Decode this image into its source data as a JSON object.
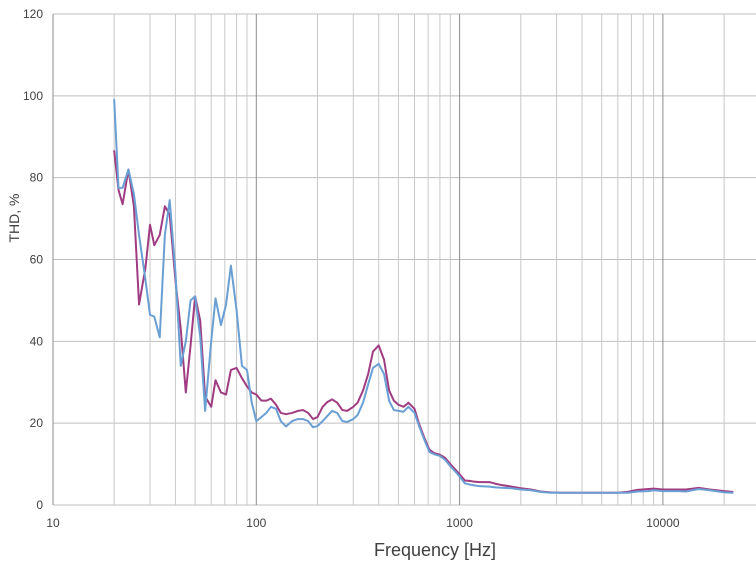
{
  "chart_data": {
    "type": "line",
    "title": "",
    "xlabel": "Frequency [Hz]",
    "ylabel": "THD, %",
    "xscale": "log",
    "xlim": [
      10,
      25000
    ],
    "ylim": [
      0,
      120
    ],
    "x_ticks": [
      "10",
      "100",
      "1000",
      "10000"
    ],
    "y_ticks": [
      "0",
      "20",
      "40",
      "60",
      "80",
      "100",
      "120"
    ],
    "grid": true,
    "legend": "none",
    "series": [
      {
        "color": "#a03c82",
        "points": [
          [
            20,
            86.5
          ],
          [
            21,
            77
          ],
          [
            22,
            73.5
          ],
          [
            23.5,
            82
          ],
          [
            25,
            73
          ],
          [
            26.5,
            49
          ],
          [
            28.5,
            58
          ],
          [
            30,
            68.5
          ],
          [
            31.5,
            63.5
          ],
          [
            33.5,
            66
          ],
          [
            35.5,
            73
          ],
          [
            37.5,
            71
          ],
          [
            40,
            55
          ],
          [
            42.5,
            43
          ],
          [
            45,
            27.5
          ],
          [
            47.5,
            39
          ],
          [
            50,
            51
          ],
          [
            53,
            45
          ],
          [
            56,
            26.5
          ],
          [
            60,
            24
          ],
          [
            63,
            30.5
          ],
          [
            67,
            27.5
          ],
          [
            71,
            27
          ],
          [
            75,
            33
          ],
          [
            80,
            33.5
          ],
          [
            85,
            31
          ],
          [
            90,
            29
          ],
          [
            95,
            27.5
          ],
          [
            100,
            27
          ],
          [
            106,
            25.5
          ],
          [
            112,
            25.5
          ],
          [
            118,
            26
          ],
          [
            125,
            24.5
          ],
          [
            132,
            22.5
          ],
          [
            140,
            22.2
          ],
          [
            150,
            22.5
          ],
          [
            160,
            23
          ],
          [
            170,
            23.2
          ],
          [
            180,
            22.5
          ],
          [
            190,
            21
          ],
          [
            200,
            21.5
          ],
          [
            212,
            24
          ],
          [
            224,
            25.2
          ],
          [
            236,
            25.8
          ],
          [
            250,
            25
          ],
          [
            265,
            23.2
          ],
          [
            280,
            23
          ],
          [
            300,
            24
          ],
          [
            315,
            25
          ],
          [
            335,
            28
          ],
          [
            355,
            32
          ],
          [
            375,
            37.5
          ],
          [
            400,
            39
          ],
          [
            425,
            35.5
          ],
          [
            450,
            28
          ],
          [
            475,
            25.5
          ],
          [
            500,
            24.5
          ],
          [
            530,
            24
          ],
          [
            560,
            25
          ],
          [
            600,
            23.5
          ],
          [
            630,
            20
          ],
          [
            670,
            16.5
          ],
          [
            710,
            13.5
          ],
          [
            750,
            12.7
          ],
          [
            800,
            12.3
          ],
          [
            850,
            11.5
          ],
          [
            900,
            10
          ],
          [
            1000,
            7.5
          ],
          [
            1060,
            6
          ],
          [
            1120,
            5.9
          ],
          [
            1180,
            5.7
          ],
          [
            1250,
            5.6
          ],
          [
            1400,
            5.6
          ],
          [
            1500,
            5.2
          ],
          [
            1600,
            4.9
          ],
          [
            1800,
            4.5
          ],
          [
            2000,
            4.1
          ],
          [
            2240,
            3.8
          ],
          [
            2500,
            3.3
          ],
          [
            2800,
            3.1
          ],
          [
            3150,
            3.0
          ],
          [
            4000,
            3.0
          ],
          [
            5000,
            3.0
          ],
          [
            6000,
            3.0
          ],
          [
            6700,
            3.2
          ],
          [
            7500,
            3.7
          ],
          [
            8500,
            3.9
          ],
          [
            9000,
            4.0
          ],
          [
            10000,
            3.8
          ],
          [
            12000,
            3.8
          ],
          [
            13000,
            3.8
          ],
          [
            15000,
            4.2
          ],
          [
            17000,
            3.8
          ],
          [
            20000,
            3.4
          ],
          [
            22000,
            3.2
          ]
        ]
      },
      {
        "color": "#6a9fd4",
        "points": [
          [
            20,
            99
          ],
          [
            21,
            77.5
          ],
          [
            22,
            77.5
          ],
          [
            23.5,
            82
          ],
          [
            25,
            76
          ],
          [
            26.5,
            66
          ],
          [
            28.5,
            55
          ],
          [
            30,
            46.5
          ],
          [
            31.5,
            46
          ],
          [
            33.5,
            41
          ],
          [
            35.5,
            66
          ],
          [
            37.5,
            74.5
          ],
          [
            40,
            57
          ],
          [
            42.5,
            34
          ],
          [
            45,
            40
          ],
          [
            47.5,
            50
          ],
          [
            50,
            51
          ],
          [
            53,
            41
          ],
          [
            56,
            23
          ],
          [
            60,
            40
          ],
          [
            63,
            50.5
          ],
          [
            67,
            44
          ],
          [
            71,
            49
          ],
          [
            75,
            58.5
          ],
          [
            80,
            47.5
          ],
          [
            85,
            34
          ],
          [
            90,
            33
          ],
          [
            95,
            25
          ],
          [
            100,
            20.5
          ],
          [
            106,
            21.5
          ],
          [
            112,
            22.5
          ],
          [
            118,
            24
          ],
          [
            125,
            23.5
          ],
          [
            132,
            20.5
          ],
          [
            140,
            19.2
          ],
          [
            150,
            20.5
          ],
          [
            160,
            21
          ],
          [
            170,
            21
          ],
          [
            180,
            20.5
          ],
          [
            190,
            19
          ],
          [
            200,
            19.3
          ],
          [
            212,
            20.5
          ],
          [
            224,
            21.8
          ],
          [
            236,
            23
          ],
          [
            250,
            22.5
          ],
          [
            265,
            20.5
          ],
          [
            280,
            20.3
          ],
          [
            300,
            21
          ],
          [
            315,
            22
          ],
          [
            335,
            25
          ],
          [
            355,
            29.5
          ],
          [
            375,
            33.5
          ],
          [
            400,
            34.5
          ],
          [
            425,
            32
          ],
          [
            450,
            25.5
          ],
          [
            475,
            23.2
          ],
          [
            500,
            23
          ],
          [
            530,
            22.8
          ],
          [
            560,
            24
          ],
          [
            600,
            22.5
          ],
          [
            630,
            19.5
          ],
          [
            670,
            16
          ],
          [
            710,
            13
          ],
          [
            750,
            12.4
          ],
          [
            800,
            12
          ],
          [
            850,
            11
          ],
          [
            900,
            9.5
          ],
          [
            1000,
            7
          ],
          [
            1060,
            5.3
          ],
          [
            1120,
            5
          ],
          [
            1180,
            4.8
          ],
          [
            1250,
            4.6
          ],
          [
            1400,
            4.5
          ],
          [
            1500,
            4.3
          ],
          [
            1600,
            4.2
          ],
          [
            1800,
            4.1
          ],
          [
            2000,
            3.8
          ],
          [
            2240,
            3.6
          ],
          [
            2500,
            3.2
          ],
          [
            2800,
            3.0
          ],
          [
            3150,
            3.0
          ],
          [
            4000,
            3.0
          ],
          [
            5000,
            3.0
          ],
          [
            6000,
            3.0
          ],
          [
            6700,
            3.0
          ],
          [
            7500,
            3.3
          ],
          [
            8500,
            3.4
          ],
          [
            9000,
            3.6
          ],
          [
            10000,
            3.4
          ],
          [
            12000,
            3.4
          ],
          [
            13000,
            3.3
          ],
          [
            15000,
            3.9
          ],
          [
            17000,
            3.6
          ],
          [
            20000,
            3.1
          ],
          [
            22000,
            3.0
          ]
        ]
      }
    ]
  }
}
